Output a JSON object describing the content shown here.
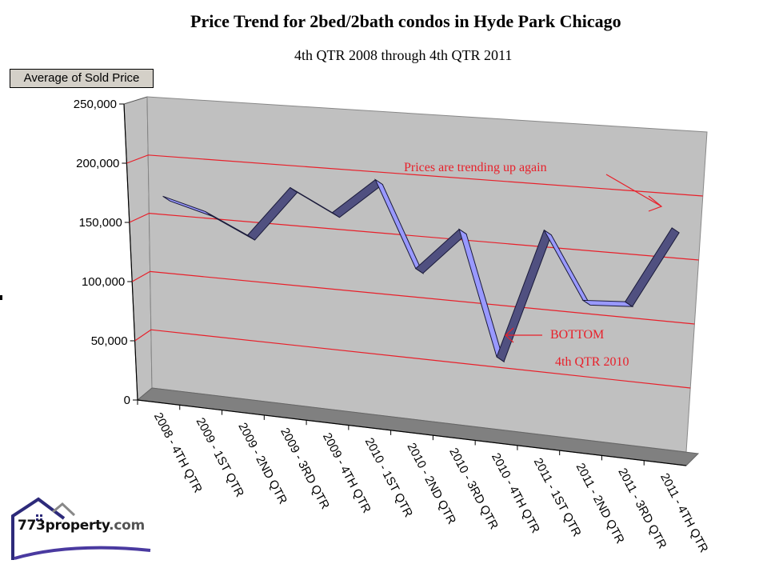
{
  "header": {
    "title": "Price Trend for 2bed/2bath condos in Hyde Park Chicago",
    "subtitle": "4th QTR 2008 through 4th QTR 2011"
  },
  "field_button": {
    "label": "Average of Sold Price"
  },
  "annotations": {
    "trend_note": "Prices are trending up again",
    "bottom_label": "BOTTOM",
    "bottom_period": "4th QTR 2010"
  },
  "logo": {
    "name": "773property",
    "domain": ".com"
  },
  "colors": {
    "wall": "#c0c0c0",
    "floor": "#808080",
    "ribbon_top": "#9999ff",
    "ribbon_side": "#505080",
    "gridline": "#e8202a",
    "annotation": "#e8202a"
  },
  "chart_data": {
    "type": "line",
    "subtype": "3d-line",
    "title": "Price Trend for 2bed/2bath condos in Hyde Park Chicago",
    "subtitle": "4th QTR 2008 through 4th QTR 2011",
    "xlabel": "",
    "ylabel": "Average of Sold Price",
    "ylim": [
      0,
      250000
    ],
    "yticks": [
      "0",
      "50,000",
      "100,000",
      "150,000",
      "200,000",
      "250,000"
    ],
    "grid": true,
    "legend": "none",
    "categories": [
      "2008 - 4TH QTR",
      "2009 - 1ST QTR",
      "2009 - 2ND QTR",
      "2009 - 3RD QTR",
      "2009 - 4TH QTR",
      "2010 - 1ST QTR",
      "2010 - 2ND QTR",
      "2010 - 3RD QTR",
      "2010 - 4TH QTR",
      "2011 - 1ST QTR",
      "2011 - 2ND QTR",
      "2011 - 3RD QTR",
      "2011 - 4TH QTR"
    ],
    "series": [
      {
        "name": "Average of Sold Price",
        "values": [
          162000,
          152000,
          135000,
          178000,
          160000,
          190000,
          120000,
          155000,
          55000,
          160000,
          107000,
          109000,
          170000
        ]
      }
    ],
    "annotations": [
      {
        "text": "Prices are trending up again",
        "target": "2011 - 4TH QTR"
      },
      {
        "text": "BOTTOM",
        "target": "2010 - 4TH QTR"
      },
      {
        "text": "4th QTR 2010",
        "target": "2010 - 4TH QTR"
      }
    ]
  }
}
